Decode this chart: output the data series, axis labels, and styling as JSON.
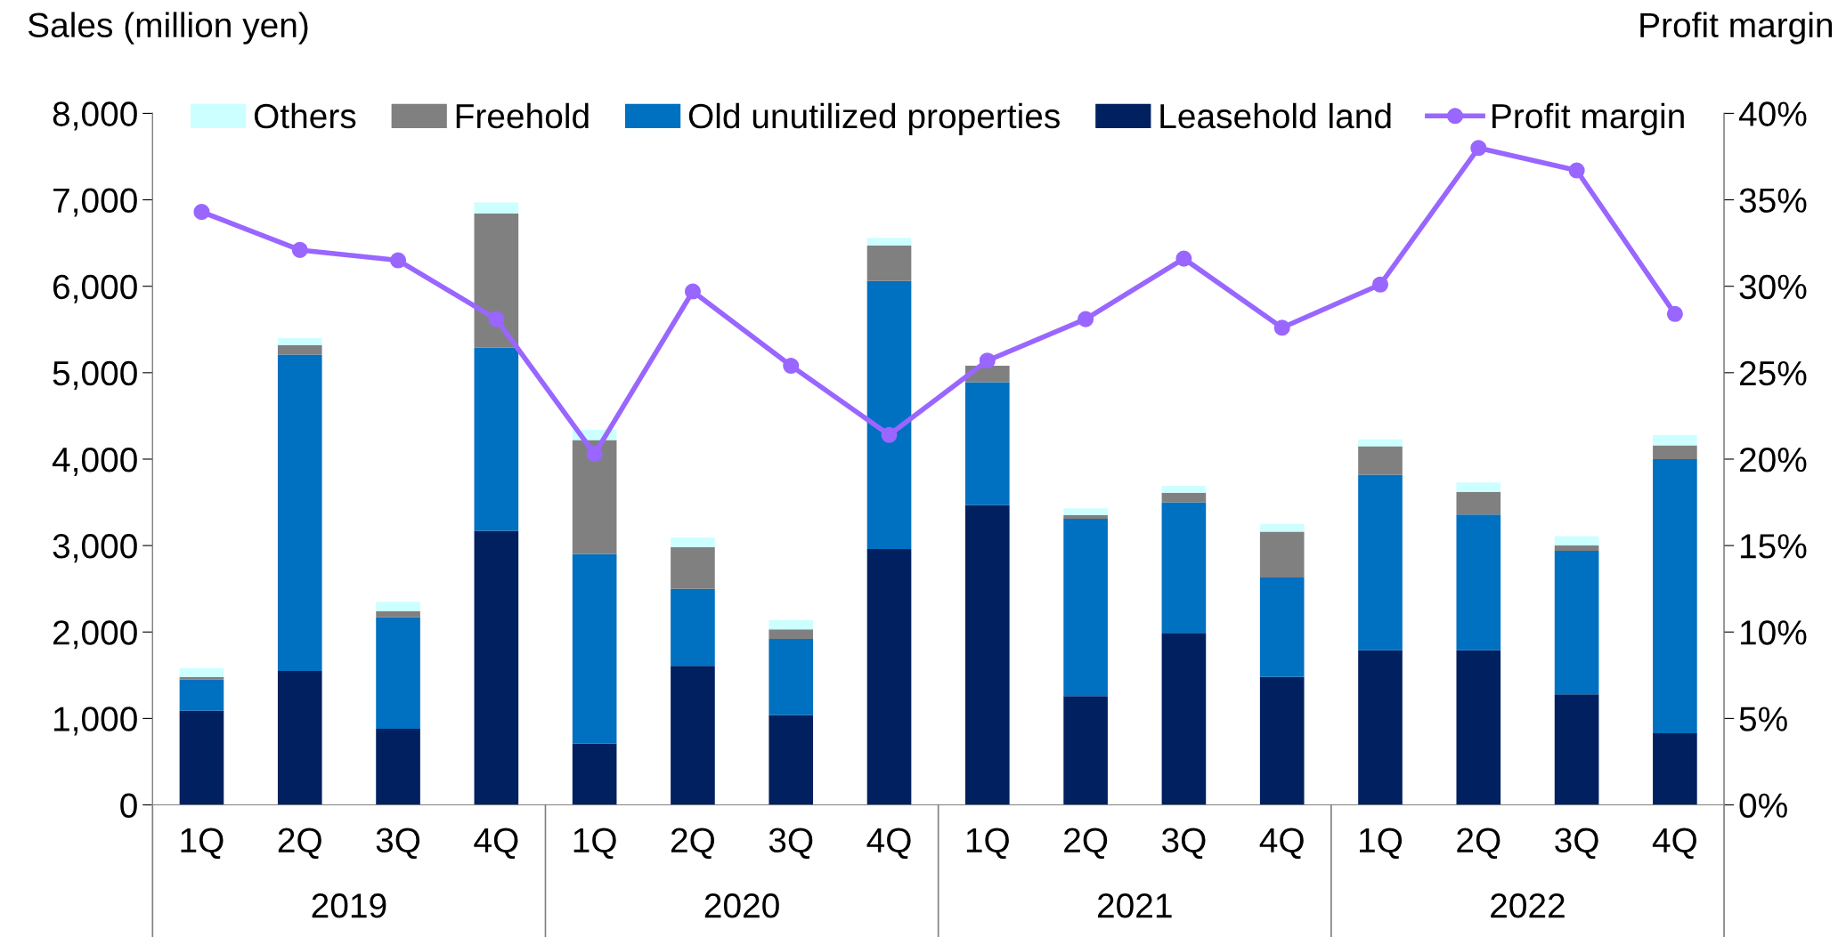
{
  "chart_data": {
    "type": "bar",
    "stacked": true,
    "ylabel": "Sales (million yen)",
    "y2label": "Profit margin",
    "categories": [
      "1Q",
      "2Q",
      "3Q",
      "4Q",
      "1Q",
      "2Q",
      "3Q",
      "4Q",
      "1Q",
      "2Q",
      "3Q",
      "4Q",
      "1Q",
      "2Q",
      "3Q",
      "4Q"
    ],
    "annotations": [
      "2019",
      "2020",
      "2021",
      "2022"
    ],
    "series": [
      {
        "name": "Leasehold land",
        "color": "#002060",
        "values": [
          1090,
          1550,
          880,
          3170,
          710,
          1610,
          1040,
          2960,
          3470,
          1260,
          1990,
          1480,
          1790,
          1790,
          1280,
          830
        ]
      },
      {
        "name": "Old unutilized properties",
        "color": "#0070c0",
        "values": [
          360,
          3660,
          1290,
          2120,
          2190,
          890,
          880,
          3100,
          1420,
          2050,
          1510,
          1150,
          2030,
          1570,
          1660,
          3170
        ]
      },
      {
        "name": "Freehold",
        "color": "#808080",
        "values": [
          30,
          110,
          70,
          1550,
          1320,
          480,
          110,
          410,
          190,
          40,
          110,
          530,
          330,
          260,
          60,
          160
        ]
      },
      {
        "name": "Others",
        "color": "#ccffff",
        "values": [
          100,
          80,
          110,
          130,
          120,
          110,
          110,
          90,
          null,
          80,
          80,
          90,
          80,
          110,
          110,
          120
        ]
      },
      {
        "name": "Profit margin",
        "type": "line",
        "axis": "y2",
        "color": "#9966ff",
        "marker": "circle",
        "values": [
          34.3,
          32.1,
          31.5,
          28.1,
          20.3,
          29.7,
          25.4,
          21.4,
          25.7,
          28.1,
          31.6,
          27.6,
          30.1,
          38.0,
          36.7,
          28.4
        ]
      }
    ],
    "ylim": [
      0,
      8000
    ],
    "yticks": [
      0,
      {
        "value": 1000,
        "label": "1,000"
      },
      {
        "value": 2000,
        "label": "2,000"
      },
      {
        "value": 3000,
        "label": "3,000"
      },
      {
        "value": 4000,
        "label": "4,000"
      },
      {
        "value": 5000,
        "label": "5,000"
      },
      {
        "value": 6000,
        "label": "6,000"
      },
      {
        "value": 7000,
        "label": "7,000"
      },
      {
        "value": 8000,
        "label": "8,000"
      }
    ],
    "y2lim": [
      0,
      40
    ],
    "y2ticks": [
      {
        "value": 0,
        "label": "0%"
      },
      {
        "value": 5,
        "label": "5%"
      },
      {
        "value": 10,
        "label": "10%"
      },
      {
        "value": 15,
        "label": "15%"
      },
      {
        "value": 20,
        "label": "20%"
      },
      {
        "value": 25,
        "label": "25%"
      },
      {
        "value": 30,
        "label": "30%"
      },
      {
        "value": 35,
        "label": "35%"
      },
      {
        "value": 40,
        "label": "40%"
      }
    ],
    "grid": false,
    "legend": "top"
  }
}
